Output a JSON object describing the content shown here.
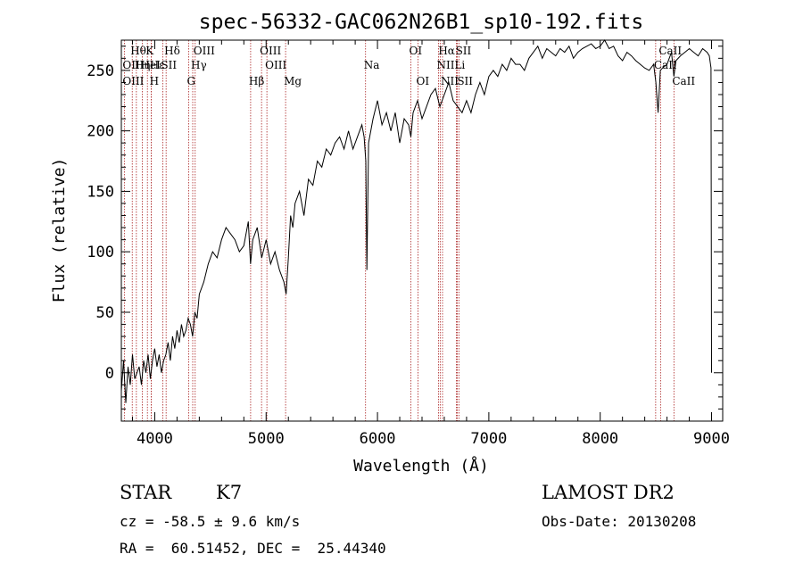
{
  "chart_data": {
    "type": "line",
    "title": "spec-56332-GAC062N26B1_sp10-192.fits",
    "xlabel": "Wavelength (Å)",
    "ylabel": "Flux (relative)",
    "xlim": [
      3700,
      9100
    ],
    "ylim": [
      -40,
      275
    ],
    "xticks": [
      4000,
      5000,
      6000,
      7000,
      8000,
      9000
    ],
    "yticks": [
      0,
      50,
      100,
      150,
      200,
      250
    ],
    "grid": false,
    "series": [
      {
        "x": [
          3700,
          3720,
          3740,
          3760,
          3780,
          3800,
          3820,
          3840,
          3860,
          3880,
          3900,
          3920,
          3940,
          3960,
          3980,
          4000,
          4020,
          4040,
          4060,
          4080,
          4100,
          4120,
          4140,
          4160,
          4180,
          4200,
          4220,
          4240,
          4260,
          4280,
          4300,
          4320,
          4340,
          4360,
          4380,
          4400,
          4440,
          4480,
          4520,
          4560,
          4600,
          4640,
          4680,
          4720,
          4760,
          4800,
          4840,
          4860,
          4880,
          4920,
          4960,
          5000,
          5040,
          5080,
          5120,
          5160,
          5180,
          5200,
          5220,
          5240,
          5260,
          5300,
          5340,
          5380,
          5420,
          5460,
          5500,
          5540,
          5580,
          5620,
          5660,
          5700,
          5740,
          5780,
          5820,
          5860,
          5880,
          5895,
          5905,
          5920,
          5960,
          6000,
          6040,
          6080,
          6120,
          6160,
          6200,
          6240,
          6280,
          6300,
          6320,
          6360,
          6400,
          6440,
          6480,
          6520,
          6560,
          6600,
          6640,
          6680,
          6720,
          6760,
          6800,
          6840,
          6880,
          6920,
          6960,
          7000,
          7040,
          7080,
          7120,
          7160,
          7200,
          7240,
          7280,
          7320,
          7360,
          7400,
          7440,
          7480,
          7520,
          7560,
          7600,
          7640,
          7680,
          7720,
          7760,
          7800,
          7840,
          7880,
          7920,
          7960,
          8000,
          8040,
          8080,
          8120,
          8160,
          8200,
          8240,
          8280,
          8320,
          8360,
          8400,
          8440,
          8480,
          8500,
          8520,
          8540,
          8560,
          8600,
          8640,
          8662,
          8680,
          8720,
          8760,
          8800,
          8840,
          8880,
          8920,
          8960,
          8980,
          8995,
          9000
        ],
        "y": [
          -15,
          10,
          -25,
          5,
          -10,
          15,
          -5,
          0,
          5,
          -10,
          10,
          0,
          15,
          -5,
          10,
          20,
          5,
          15,
          0,
          10,
          15,
          25,
          10,
          30,
          20,
          35,
          25,
          40,
          30,
          35,
          45,
          40,
          30,
          50,
          45,
          65,
          75,
          90,
          100,
          95,
          110,
          120,
          115,
          110,
          100,
          105,
          125,
          90,
          110,
          120,
          95,
          110,
          90,
          100,
          85,
          75,
          65,
          95,
          130,
          120,
          140,
          150,
          130,
          160,
          155,
          175,
          170,
          185,
          180,
          190,
          195,
          185,
          200,
          185,
          195,
          205,
          195,
          175,
          85,
          190,
          210,
          225,
          205,
          215,
          200,
          215,
          190,
          210,
          205,
          195,
          215,
          225,
          210,
          220,
          230,
          235,
          220,
          230,
          240,
          225,
          220,
          215,
          225,
          215,
          230,
          240,
          230,
          245,
          250,
          245,
          255,
          250,
          260,
          255,
          255,
          250,
          260,
          265,
          270,
          260,
          268,
          265,
          262,
          268,
          265,
          270,
          260,
          265,
          268,
          270,
          272,
          268,
          270,
          275,
          268,
          270,
          262,
          258,
          265,
          262,
          258,
          255,
          252,
          250,
          255,
          240,
          215,
          250,
          252,
          255,
          265,
          245,
          258,
          262,
          265,
          268,
          265,
          262,
          268,
          265,
          262,
          252,
          0
        ]
      }
    ],
    "lines": [
      {
        "name": "Hθ",
        "x": 3798,
        "row": 0
      },
      {
        "name": "OII",
        "x": 3727,
        "row": 1
      },
      {
        "name": "OIII",
        "x": 3727,
        "row": 2
      },
      {
        "name": "K",
        "x": 3934,
        "row": 0
      },
      {
        "name": "Hε",
        "x": 3970,
        "row": 1
      },
      {
        "name": "H",
        "x": 3969,
        "row": 2
      },
      {
        "name": "Hη",
        "x": 3835,
        "row": 1
      },
      {
        "name": "HeI",
        "x": 3889,
        "row": 1
      },
      {
        "name": "SII",
        "x": 4072,
        "row": 1
      },
      {
        "name": "Hδ",
        "x": 4102,
        "row": 0
      },
      {
        "name": "OIII",
        "x": 4363,
        "row": 0
      },
      {
        "name": "Hγ",
        "x": 4341,
        "row": 1
      },
      {
        "name": "G",
        "x": 4305,
        "row": 2
      },
      {
        "name": "Hβ",
        "x": 4861,
        "row": 2
      },
      {
        "name": "OIII",
        "x": 4959,
        "row": 0
      },
      {
        "name": "OIII",
        "x": 5007,
        "row": 1
      },
      {
        "name": "Mg",
        "x": 5175,
        "row": 2
      },
      {
        "name": "Na",
        "x": 5893,
        "row": 1
      },
      {
        "name": "OI",
        "x": 6300,
        "row": 0
      },
      {
        "name": "OI",
        "x": 6364,
        "row": 2
      },
      {
        "name": "Hα",
        "x": 6563,
        "row": 0
      },
      {
        "name": "NII",
        "x": 6548,
        "row": 1
      },
      {
        "name": "NII",
        "x": 6584,
        "row": 2
      },
      {
        "name": "SII",
        "x": 6717,
        "row": 0
      },
      {
        "name": "Li",
        "x": 6708,
        "row": 1
      },
      {
        "name": "SII",
        "x": 6731,
        "row": 2
      },
      {
        "name": "CaII",
        "x": 8542,
        "row": 0
      },
      {
        "name": "CaII",
        "x": 8498,
        "row": 1
      },
      {
        "name": "CaII",
        "x": 8662,
        "row": 2
      }
    ]
  },
  "info": {
    "object_class": "STAR",
    "subclass": "K7",
    "survey": "LAMOST DR2",
    "cz": "cz = -58.5 ± 9.6 km/s",
    "obs_date": "Obs-Date: 20130208",
    "coords": "RA =  60.51452, DEC =  25.44340"
  },
  "colors": {
    "spectrum": "#000000",
    "line_marker": "#aa2222"
  }
}
